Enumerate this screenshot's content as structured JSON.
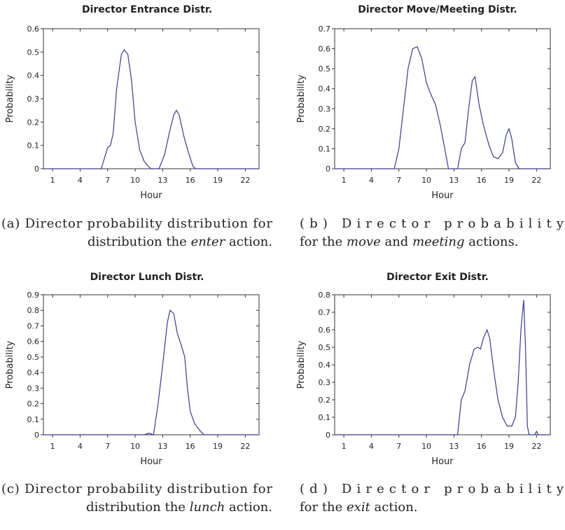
{
  "chart_data": [
    {
      "type": "line",
      "title": "Director Entrance Distr.",
      "xlabel": "Hour",
      "ylabel": "Probability",
      "color": "#3a3a8c",
      "xlim": [
        0,
        23.5
      ],
      "xticks": [
        1,
        4,
        7,
        10,
        13,
        16,
        19,
        22
      ],
      "ylim": [
        0,
        0.6
      ],
      "yticks": [
        0,
        0.1,
        0.2,
        0.3,
        0.4,
        0.5,
        0.6
      ],
      "x": [
        0,
        6.3,
        7,
        7.3,
        7.6,
        8,
        8.5,
        8.8,
        9.2,
        9.6,
        10,
        10.5,
        11,
        11.7,
        12.6,
        13.2,
        13.7,
        14.2,
        14.5,
        14.8,
        15.3,
        15.8,
        16.3,
        16.6,
        23.5
      ],
      "values": [
        0,
        0,
        0.09,
        0.1,
        0.15,
        0.35,
        0.49,
        0.51,
        0.49,
        0.38,
        0.2,
        0.08,
        0.03,
        0,
        0,
        0.06,
        0.15,
        0.23,
        0.25,
        0.23,
        0.14,
        0.07,
        0.01,
        0,
        0
      ]
    },
    {
      "type": "line",
      "title": "Director Move/Meeting Distr.",
      "xlabel": "Hour",
      "ylabel": "Probability",
      "color": "#3a3a8c",
      "xlim": [
        0,
        23.5
      ],
      "xticks": [
        1,
        4,
        7,
        10,
        13,
        16,
        19,
        22
      ],
      "ylim": [
        0,
        0.7
      ],
      "yticks": [
        0,
        0.1,
        0.2,
        0.3,
        0.4,
        0.5,
        0.6,
        0.7
      ],
      "x": [
        0,
        6.5,
        7,
        7.5,
        8,
        8.5,
        9,
        9.5,
        10,
        10.5,
        11,
        11.5,
        12,
        12.4,
        13.4,
        13.8,
        14.2,
        14.6,
        15,
        15.3,
        15.7,
        16.2,
        16.8,
        17.3,
        17.8,
        18.3,
        18.7,
        19,
        19.3,
        19.7,
        20.1,
        23.5
      ],
      "values": [
        0,
        0,
        0.1,
        0.3,
        0.5,
        0.6,
        0.61,
        0.55,
        0.43,
        0.37,
        0.32,
        0.22,
        0.1,
        0,
        0,
        0.1,
        0.13,
        0.3,
        0.44,
        0.46,
        0.33,
        0.22,
        0.12,
        0.06,
        0.05,
        0.08,
        0.17,
        0.2,
        0.15,
        0.03,
        0,
        0
      ]
    },
    {
      "type": "line",
      "title": "Director Lunch Distr.",
      "xlabel": "Hour",
      "ylabel": "Probability",
      "color": "#3a3a8c",
      "xlim": [
        0,
        23.5
      ],
      "xticks": [
        1,
        4,
        7,
        10,
        13,
        16,
        19,
        22
      ],
      "ylim": [
        0,
        0.9
      ],
      "yticks": [
        0,
        0.1,
        0.2,
        0.3,
        0.4,
        0.5,
        0.6,
        0.7,
        0.8,
        0.9
      ],
      "x": [
        0,
        11,
        11.5,
        12,
        12.5,
        13,
        13.5,
        13.8,
        14.2,
        14.6,
        15,
        15.4,
        15.7,
        16,
        16.5,
        17,
        17.5,
        23.5
      ],
      "values": [
        0,
        0,
        0.01,
        0,
        0.2,
        0.45,
        0.72,
        0.8,
        0.78,
        0.65,
        0.58,
        0.5,
        0.3,
        0.15,
        0.07,
        0.03,
        0,
        0
      ]
    },
    {
      "type": "line",
      "title": "Director Exit Distr.",
      "xlabel": "Hour",
      "ylabel": "Probability",
      "color": "#3a3a8c",
      "xlim": [
        0,
        23.5
      ],
      "xticks": [
        1,
        4,
        7,
        10,
        13,
        16,
        19,
        22
      ],
      "ylim": [
        0,
        0.8
      ],
      "yticks": [
        0,
        0.1,
        0.2,
        0.3,
        0.4,
        0.5,
        0.6,
        0.7,
        0.8
      ],
      "x": [
        0,
        13.4,
        13.8,
        14.2,
        14.7,
        15.2,
        15.6,
        15.9,
        16.2,
        16.6,
        16.9,
        17.3,
        17.8,
        18.3,
        18.8,
        19.3,
        19.7,
        20,
        20.3,
        20.6,
        20.8,
        21,
        21.2,
        21.8,
        22,
        22.2,
        23.5
      ],
      "values": [
        0,
        0,
        0.2,
        0.25,
        0.4,
        0.49,
        0.5,
        0.49,
        0.55,
        0.6,
        0.55,
        0.38,
        0.2,
        0.1,
        0.05,
        0.05,
        0.1,
        0.3,
        0.6,
        0.77,
        0.5,
        0.05,
        0,
        0,
        0.02,
        0,
        0
      ]
    }
  ],
  "captions": [
    {
      "lines": [
        [
          {
            "text": "(a) Director probability distribution for"
          }
        ],
        [
          {
            "text": "distribution the "
          },
          {
            "text": "enter",
            "style": "italic"
          },
          {
            "text": " action."
          }
        ]
      ]
    },
    {
      "lines": [
        [
          {
            "text": "(b) Director probability"
          }
        ],
        [
          {
            "text": "for the "
          },
          {
            "text": "move",
            "style": "italic"
          },
          {
            "text": " and "
          },
          {
            "text": "meeting",
            "style": "italic"
          },
          {
            "text": " actions."
          }
        ]
      ]
    },
    {
      "lines": [
        [
          {
            "text": "(c) Director probability distribution for"
          }
        ],
        [
          {
            "text": "distribution the "
          },
          {
            "text": "lunch",
            "style": "italic"
          },
          {
            "text": " action."
          }
        ]
      ]
    },
    {
      "lines": [
        [
          {
            "text": "(d) Director probability"
          }
        ],
        [
          {
            "text": "for the "
          },
          {
            "text": "exit",
            "style": "italic"
          },
          {
            "text": " action."
          }
        ]
      ]
    }
  ]
}
